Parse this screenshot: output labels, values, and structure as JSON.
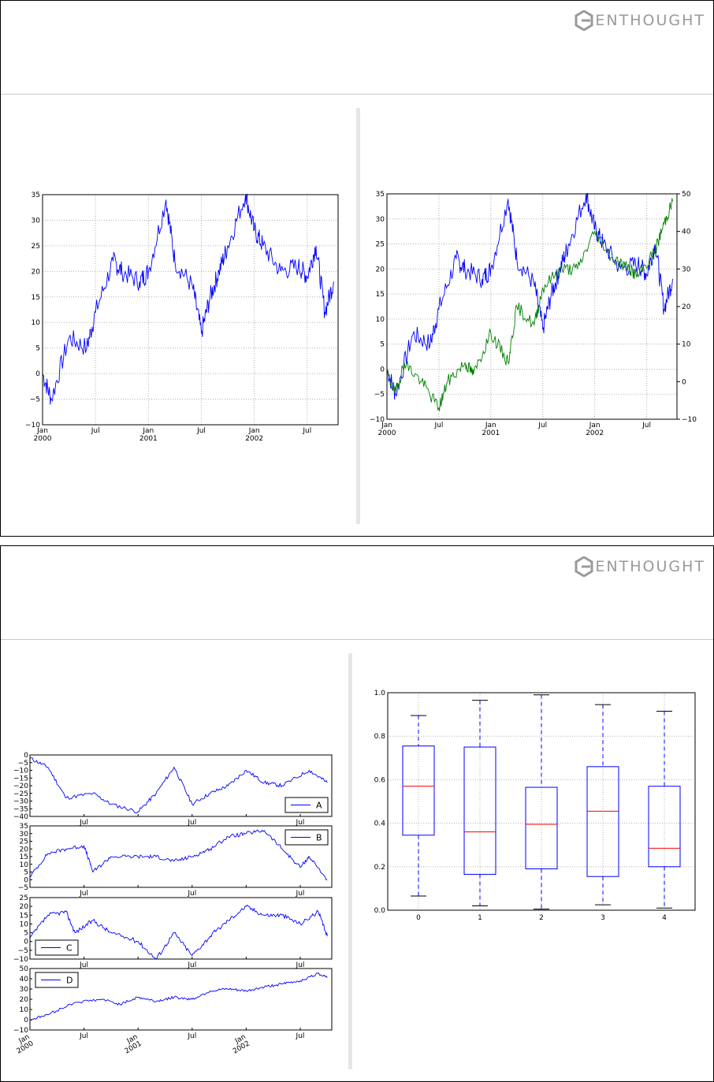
{
  "brand": {
    "name": "ENTHOUGHT",
    "icon": "enthought-logo-icon"
  },
  "colors": {
    "blue": "#0000ff",
    "green": "#008000",
    "red": "#ff0000",
    "grid": "#b0b0b0",
    "logo": "#9a9a9a"
  },
  "chart_data": [
    {
      "id": "single-series",
      "type": "line",
      "title": "",
      "xlabel": "",
      "ylabel": "",
      "x_ticks": [
        "Jan\n2000",
        "Jul",
        "Jan\n2001",
        "Jul",
        "Jan\n2002",
        "Jul"
      ],
      "x_range": [
        "2000-01",
        "2002-10"
      ],
      "ylim": [
        -10,
        35
      ],
      "y_ticks": [
        "35",
        "30",
        "25",
        "20",
        "15",
        "10",
        "5",
        "0",
        "−5",
        "−10"
      ],
      "grid": true,
      "series": [
        {
          "color": "#0000ff",
          "x": [
            "2000-01",
            "2000-02",
            "2000-04",
            "2000-06",
            "2000-07",
            "2000-09",
            "2000-10",
            "2000-12",
            "2001-01",
            "2001-03",
            "2001-04",
            "2001-06",
            "2001-07",
            "2001-08",
            "2001-09",
            "2001-10",
            "2001-12",
            "2002-01",
            "2002-02",
            "2002-04",
            "2002-06",
            "2002-07",
            "2002-08",
            "2002-09",
            "2002-10"
          ],
          "y": [
            0,
            -5,
            7,
            5,
            12,
            22,
            20,
            18,
            20,
            34,
            22,
            17,
            8,
            15,
            20,
            25,
            35,
            28,
            25,
            20,
            21,
            19,
            25,
            12,
            18
          ]
        }
      ]
    },
    {
      "id": "secondary-axis",
      "type": "line",
      "title": "",
      "x_ticks": [
        "Jan\n2000",
        "Jul",
        "Jan\n2001",
        "Jul",
        "Jan\n2002",
        "Jul"
      ],
      "ylim_left": [
        -10,
        35
      ],
      "y_ticks_left": [
        "35",
        "30",
        "25",
        "20",
        "15",
        "10",
        "5",
        "0",
        "−5",
        "−10"
      ],
      "ylim_right": [
        -10,
        50
      ],
      "y_ticks_right": [
        "50",
        "40",
        "30",
        "20",
        "10",
        "0",
        "−10"
      ],
      "grid": true,
      "series": [
        {
          "axis": "left",
          "color": "#0000ff",
          "x": [
            "2000-01",
            "2000-02",
            "2000-04",
            "2000-06",
            "2000-07",
            "2000-09",
            "2000-10",
            "2000-12",
            "2001-01",
            "2001-03",
            "2001-04",
            "2001-06",
            "2001-07",
            "2001-08",
            "2001-09",
            "2001-10",
            "2001-12",
            "2002-01",
            "2002-02",
            "2002-04",
            "2002-06",
            "2002-07",
            "2002-08",
            "2002-09",
            "2002-10"
          ],
          "y": [
            0,
            -5,
            7,
            5,
            12,
            22,
            20,
            18,
            20,
            34,
            22,
            17,
            8,
            15,
            20,
            25,
            35,
            28,
            25,
            20,
            21,
            19,
            25,
            12,
            18
          ]
        },
        {
          "axis": "right",
          "color": "#008000",
          "x": [
            "2000-01",
            "2000-02",
            "2000-03",
            "2000-05",
            "2000-07",
            "2000-08",
            "2000-10",
            "2000-11",
            "2001-01",
            "2001-03",
            "2001-04",
            "2001-06",
            "2001-07",
            "2001-09",
            "2001-11",
            "2002-01",
            "2002-03",
            "2002-05",
            "2002-06",
            "2002-08",
            "2002-09",
            "2002-10"
          ],
          "y": [
            2,
            -3,
            5,
            0,
            -7,
            0,
            5,
            2,
            13,
            5,
            20,
            15,
            25,
            30,
            30,
            40,
            33,
            30,
            28,
            35,
            42,
            48
          ]
        }
      ]
    },
    {
      "id": "subplots",
      "type": "line",
      "x_ticks": [
        "Jan\n2000",
        "Jul",
        "Jan\n2001",
        "Jul",
        "Jan\n2002",
        "Jul"
      ],
      "panels": [
        {
          "name": "A",
          "legend": "bottom-right",
          "ylim": [
            -40,
            0
          ],
          "y_ticks": [
            "0",
            "−5",
            "−10",
            "−15",
            "−20",
            "−25",
            "−30",
            "−35",
            "−40"
          ],
          "x": [
            "2000-01",
            "2000-03",
            "2000-05",
            "2000-08",
            "2000-10",
            "2001-01",
            "2001-03",
            "2001-05",
            "2001-07",
            "2001-09",
            "2001-11",
            "2002-01",
            "2002-03",
            "2002-05",
            "2002-08",
            "2002-10"
          ],
          "y": [
            -2,
            -8,
            -28,
            -25,
            -32,
            -37,
            -25,
            -8,
            -32,
            -25,
            -20,
            -10,
            -18,
            -20,
            -10,
            -18
          ]
        },
        {
          "name": "B",
          "legend": "top-right",
          "ylim": [
            -5,
            35
          ],
          "y_ticks": [
            "35",
            "30",
            "25",
            "20",
            "15",
            "10",
            "5",
            "0",
            "−5"
          ],
          "x": [
            "2000-01",
            "2000-03",
            "2000-05",
            "2000-07",
            "2000-08",
            "2000-10",
            "2001-01",
            "2001-03",
            "2001-05",
            "2001-07",
            "2001-09",
            "2001-11",
            "2002-01",
            "2002-03",
            "2002-05",
            "2002-07",
            "2002-08",
            "2002-10"
          ],
          "y": [
            2,
            17,
            20,
            22,
            5,
            15,
            15,
            15,
            12,
            15,
            20,
            28,
            30,
            32,
            20,
            8,
            15,
            0
          ]
        },
        {
          "name": "C",
          "legend": "bottom-left",
          "ylim": [
            -10,
            25
          ],
          "y_ticks": [
            "25",
            "20",
            "15",
            "10",
            "5",
            "0",
            "−5",
            "−10"
          ],
          "x": [
            "2000-01",
            "2000-03",
            "2000-05",
            "2000-06",
            "2000-08",
            "2000-10",
            "2001-01",
            "2001-03",
            "2001-05",
            "2001-07",
            "2001-09",
            "2001-11",
            "2002-01",
            "2002-03",
            "2002-05",
            "2002-07",
            "2002-09",
            "2002-10"
          ],
          "y": [
            2,
            15,
            17,
            5,
            12,
            5,
            0,
            -10,
            5,
            -8,
            3,
            12,
            20,
            15,
            15,
            10,
            17,
            3
          ]
        },
        {
          "name": "D",
          "legend": "top-left",
          "ylim": [
            -10,
            50
          ],
          "y_ticks": [
            "50",
            "40",
            "30",
            "20",
            "10",
            "0",
            "−10"
          ],
          "x": [
            "2000-01",
            "2000-03",
            "2000-06",
            "2000-09",
            "2000-11",
            "2001-01",
            "2001-03",
            "2001-05",
            "2001-07",
            "2001-09",
            "2001-11",
            "2002-01",
            "2002-03",
            "2002-05",
            "2002-07",
            "2002-09",
            "2002-10"
          ],
          "y": [
            0,
            5,
            17,
            20,
            15,
            22,
            18,
            22,
            20,
            28,
            30,
            28,
            32,
            35,
            38,
            45,
            42
          ]
        }
      ]
    },
    {
      "id": "boxplot",
      "type": "box",
      "categories": [
        "0",
        "1",
        "2",
        "3",
        "4"
      ],
      "ylim": [
        0.0,
        1.0
      ],
      "y_ticks": [
        "1.0",
        "0.8",
        "0.6",
        "0.4",
        "0.2",
        "0.0"
      ],
      "grid": true,
      "boxes": [
        {
          "min": 0.065,
          "q1": 0.345,
          "median": 0.57,
          "q3": 0.755,
          "max": 0.895
        },
        {
          "min": 0.02,
          "q1": 0.165,
          "median": 0.36,
          "q3": 0.75,
          "max": 0.965
        },
        {
          "min": 0.005,
          "q1": 0.19,
          "median": 0.395,
          "q3": 0.565,
          "max": 0.99
        },
        {
          "min": 0.025,
          "q1": 0.155,
          "median": 0.455,
          "q3": 0.66,
          "max": 0.945
        },
        {
          "min": 0.01,
          "q1": 0.2,
          "median": 0.285,
          "q3": 0.57,
          "max": 0.915
        }
      ]
    }
  ]
}
